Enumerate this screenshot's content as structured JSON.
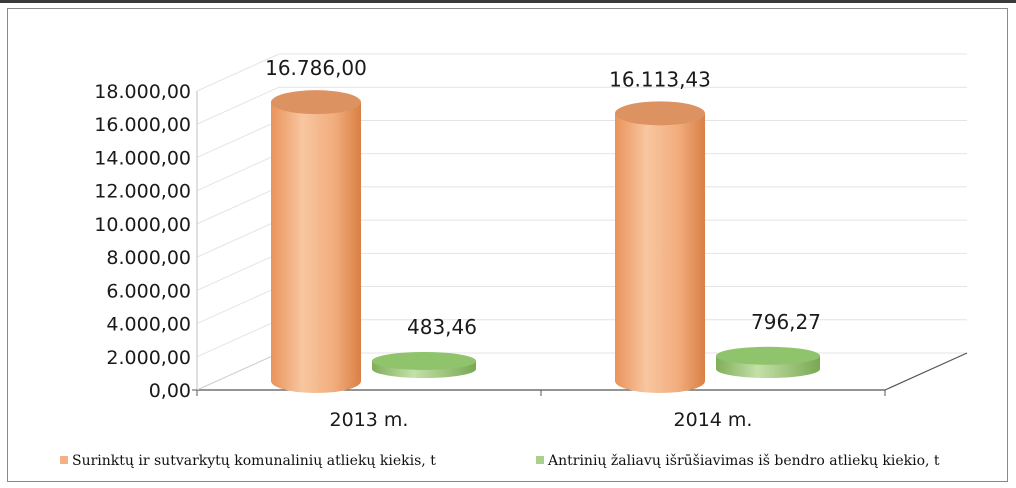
{
  "chart_data": {
    "type": "bar",
    "categories": [
      "2013 m.",
      "2014 m."
    ],
    "series": [
      {
        "name": "Surinktų ir sutvarkytų komunalinių atliekų kiekis, t",
        "values": [
          16786.0,
          16113.43
        ],
        "labels": [
          "16.786,00",
          "16.113,43"
        ],
        "color": "#f4b183"
      },
      {
        "name": "Antrinių žaliavų išrūšiavimas iš bendro atliekų kiekio, t",
        "values": [
          483.46,
          796.27
        ],
        "labels": [
          "483,46",
          "796,27"
        ],
        "color": "#a9d18e"
      }
    ],
    "y_ticks": [
      "0,00",
      "2.000,00",
      "4.000,00",
      "6.000,00",
      "8.000,00",
      "10.000,00",
      "12.000,00",
      "14.000,00",
      "16.000,00",
      "18.000,00"
    ],
    "ylim": [
      0,
      18000
    ],
    "grid": true,
    "legend_position": "bottom",
    "style": "3d-cylinder"
  }
}
